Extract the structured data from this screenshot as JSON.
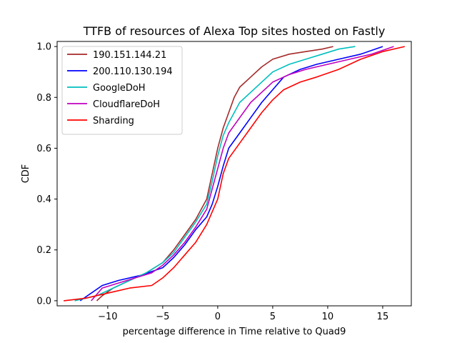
{
  "chart_data": {
    "type": "line",
    "title": "TTFB of resources of Alexa Top sites hosted on Fastly",
    "xlabel": "percentage difference in Time relative to Quad9",
    "ylabel": "CDF",
    "xlim": [
      -14.6,
      17.6
    ],
    "ylim": [
      -0.02,
      1.02
    ],
    "xticks": [
      -10,
      -5,
      0,
      5,
      10,
      15
    ],
    "xtick_labels": [
      "−10",
      "−5",
      "0",
      "5",
      "10",
      "15"
    ],
    "yticks": [
      0.0,
      0.2,
      0.4,
      0.6,
      0.8,
      1.0
    ],
    "ytick_labels": [
      "0.0",
      "0.2",
      "0.4",
      "0.6",
      "0.8",
      "1.0"
    ],
    "grid": false,
    "legend_position": "top-left",
    "series": [
      {
        "name": "190.151.144.21",
        "color": "#a52a2a",
        "x": [
          -11.0,
          -10.5,
          -9.5,
          -8.0,
          -6.5,
          -5.0,
          -4.0,
          -3.0,
          -2.0,
          -1.0,
          -0.5,
          0.0,
          0.5,
          1.0,
          1.5,
          2.0,
          3.0,
          4.0,
          5.0,
          6.5,
          8.0,
          9.5,
          10.5
        ],
        "y": [
          0.0,
          0.02,
          0.05,
          0.08,
          0.11,
          0.15,
          0.2,
          0.26,
          0.32,
          0.4,
          0.5,
          0.6,
          0.68,
          0.74,
          0.8,
          0.84,
          0.88,
          0.92,
          0.95,
          0.97,
          0.98,
          0.99,
          1.0
        ]
      },
      {
        "name": "200.110.130.194",
        "color": "#0000ff",
        "x": [
          -12.5,
          -11.5,
          -10.5,
          -9.0,
          -7.0,
          -5.0,
          -4.0,
          -3.0,
          -2.0,
          -1.0,
          -0.5,
          0.0,
          0.5,
          1.0,
          2.0,
          3.0,
          4.0,
          5.0,
          6.0,
          7.5,
          9.0,
          11.0,
          13.0,
          15.0
        ],
        "y": [
          0.0,
          0.03,
          0.06,
          0.08,
          0.1,
          0.13,
          0.17,
          0.22,
          0.28,
          0.33,
          0.38,
          0.45,
          0.53,
          0.6,
          0.66,
          0.72,
          0.78,
          0.83,
          0.88,
          0.91,
          0.93,
          0.95,
          0.97,
          1.0
        ]
      },
      {
        "name": "GoogleDoH",
        "color": "#00bfbf",
        "x": [
          -13.0,
          -11.0,
          -9.5,
          -8.0,
          -6.5,
          -5.0,
          -4.0,
          -3.0,
          -2.0,
          -1.0,
          -0.5,
          0.0,
          0.5,
          1.0,
          1.5,
          2.0,
          3.0,
          4.0,
          5.0,
          6.5,
          8.0,
          9.5,
          11.0,
          12.5
        ],
        "y": [
          0.0,
          0.02,
          0.05,
          0.08,
          0.11,
          0.15,
          0.19,
          0.25,
          0.31,
          0.38,
          0.47,
          0.57,
          0.65,
          0.7,
          0.74,
          0.78,
          0.82,
          0.86,
          0.9,
          0.93,
          0.95,
          0.97,
          0.99,
          1.0
        ]
      },
      {
        "name": "CloudflareDoH",
        "color": "#bf00bf",
        "x": [
          -11.5,
          -10.5,
          -9.0,
          -7.5,
          -6.0,
          -5.0,
          -4.0,
          -3.0,
          -2.0,
          -1.0,
          -0.5,
          0.0,
          0.5,
          1.0,
          2.0,
          3.0,
          4.0,
          5.0,
          6.5,
          8.0,
          10.0,
          12.0,
          14.0,
          16.0
        ],
        "y": [
          0.0,
          0.05,
          0.07,
          0.09,
          0.11,
          0.14,
          0.18,
          0.23,
          0.29,
          0.36,
          0.44,
          0.52,
          0.6,
          0.66,
          0.72,
          0.78,
          0.82,
          0.86,
          0.89,
          0.91,
          0.93,
          0.95,
          0.97,
          1.0
        ]
      },
      {
        "name": "Sharding",
        "color": "#ff0000",
        "x": [
          -14.0,
          -12.0,
          -10.0,
          -8.0,
          -6.0,
          -5.0,
          -4.0,
          -3.0,
          -2.0,
          -1.0,
          0.0,
          0.5,
          1.0,
          2.0,
          3.0,
          4.0,
          5.0,
          6.0,
          7.5,
          9.0,
          11.0,
          13.0,
          15.0,
          17.0
        ],
        "y": [
          0.0,
          0.01,
          0.03,
          0.05,
          0.06,
          0.09,
          0.13,
          0.18,
          0.23,
          0.3,
          0.4,
          0.5,
          0.56,
          0.62,
          0.68,
          0.74,
          0.79,
          0.83,
          0.86,
          0.88,
          0.91,
          0.95,
          0.98,
          1.0
        ]
      }
    ]
  }
}
